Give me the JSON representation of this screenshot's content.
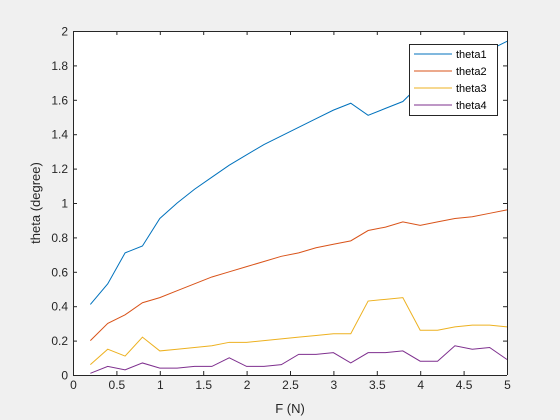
{
  "chart_data": {
    "type": "line",
    "title": "",
    "xlabel": "F (N)",
    "ylabel": "theta (degree)",
    "xlim": [
      0,
      5
    ],
    "ylim": [
      0,
      2
    ],
    "grid": false,
    "legend_position": "top-right",
    "x_ticks": [
      "0",
      "0.5",
      "1",
      "1.5",
      "2",
      "2.5",
      "3",
      "3.5",
      "4",
      "4.5",
      "5"
    ],
    "y_ticks": [
      "0",
      "0.2",
      "0.4",
      "0.6",
      "0.8",
      "1",
      "1.2",
      "1.4",
      "1.6",
      "1.8",
      "2"
    ],
    "x": [
      0.2,
      0.4,
      0.6,
      0.8,
      1.0,
      1.2,
      1.4,
      1.6,
      1.8,
      2.0,
      2.2,
      2.4,
      2.6,
      2.8,
      3.0,
      3.2,
      3.4,
      3.6,
      3.8,
      4.0,
      4.2,
      4.4,
      4.6,
      4.8,
      5.0
    ],
    "series": [
      {
        "name": "theta1",
        "color": "#0072BD",
        "values": [
          0.41,
          0.53,
          0.71,
          0.75,
          0.91,
          1.0,
          1.08,
          1.15,
          1.22,
          1.28,
          1.34,
          1.39,
          1.44,
          1.49,
          1.54,
          1.58,
          1.51,
          1.55,
          1.59,
          1.69,
          1.75,
          1.79,
          1.84,
          1.89,
          1.94
        ]
      },
      {
        "name": "theta2",
        "color": "#D95319",
        "values": [
          0.2,
          0.3,
          0.35,
          0.42,
          0.45,
          0.49,
          0.53,
          0.57,
          0.6,
          0.63,
          0.66,
          0.69,
          0.71,
          0.74,
          0.76,
          0.78,
          0.84,
          0.86,
          0.89,
          0.87,
          0.89,
          0.91,
          0.92,
          0.94,
          0.96
        ]
      },
      {
        "name": "theta3",
        "color": "#EDB120",
        "values": [
          0.06,
          0.15,
          0.11,
          0.22,
          0.14,
          0.15,
          0.16,
          0.17,
          0.19,
          0.19,
          0.2,
          0.21,
          0.22,
          0.23,
          0.24,
          0.24,
          0.43,
          0.44,
          0.45,
          0.26,
          0.26,
          0.28,
          0.29,
          0.29,
          0.28
        ]
      },
      {
        "name": "theta4",
        "color": "#7E2F8E",
        "values": [
          0.01,
          0.05,
          0.03,
          0.07,
          0.04,
          0.04,
          0.05,
          0.05,
          0.1,
          0.05,
          0.05,
          0.06,
          0.12,
          0.12,
          0.13,
          0.07,
          0.13,
          0.13,
          0.14,
          0.08,
          0.08,
          0.17,
          0.15,
          0.16,
          0.09
        ]
      }
    ]
  }
}
